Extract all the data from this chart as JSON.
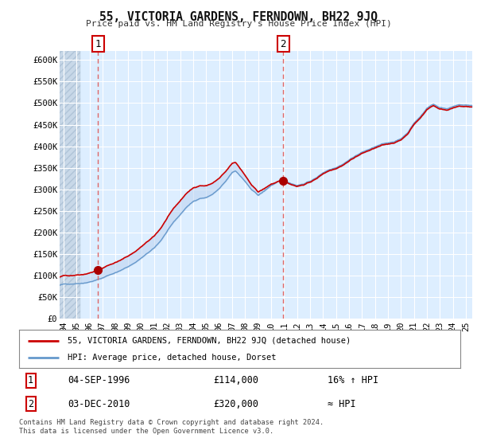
{
  "title": "55, VICTORIA GARDENS, FERNDOWN, BH22 9JQ",
  "subtitle": "Price paid vs. HM Land Registry's House Price Index (HPI)",
  "ylim": [
    0,
    620000
  ],
  "yticks": [
    0,
    50000,
    100000,
    150000,
    200000,
    250000,
    300000,
    350000,
    400000,
    450000,
    500000,
    550000,
    600000
  ],
  "ytick_labels": [
    "£0",
    "£50K",
    "£100K",
    "£150K",
    "£200K",
    "£250K",
    "£300K",
    "£350K",
    "£400K",
    "£450K",
    "£500K",
    "£550K",
    "£600K"
  ],
  "xlim_start": 1993.7,
  "xlim_end": 2025.5,
  "xticks": [
    1994,
    1995,
    1996,
    1997,
    1998,
    1999,
    2000,
    2001,
    2002,
    2003,
    2004,
    2005,
    2006,
    2007,
    2008,
    2009,
    2010,
    2011,
    2012,
    2013,
    2014,
    2015,
    2016,
    2017,
    2018,
    2019,
    2020,
    2021,
    2022,
    2023,
    2024,
    2025
  ],
  "xtick_labels": [
    "94",
    "95",
    "96",
    "97",
    "98",
    "99",
    "00",
    "01",
    "02",
    "03",
    "04",
    "05",
    "06",
    "07",
    "08",
    "09",
    "10",
    "11",
    "12",
    "13",
    "14",
    "15",
    "16",
    "17",
    "18",
    "19",
    "20",
    "21",
    "22",
    "23",
    "24",
    "25"
  ],
  "background_color": "#ffffff",
  "plot_bg_color": "#ddeeff",
  "hatch_bg_color": "#c8d8e8",
  "grid_color": "#ffffff",
  "hpi_line_color": "#6699cc",
  "price_line_color": "#cc0000",
  "marker_color": "#aa0000",
  "dashed_line_color": "#dd6666",
  "sale1_x": 1996.67,
  "sale1_y": 114000,
  "sale2_x": 2010.92,
  "sale2_y": 320000,
  "hatch_end_x": 1995.3,
  "legend_label1": "55, VICTORIA GARDENS, FERNDOWN, BH22 9JQ (detached house)",
  "legend_label2": "HPI: Average price, detached house, Dorset",
  "info1_num": "1",
  "info1_date": "04-SEP-1996",
  "info1_price": "£114,000",
  "info1_hpi": "16% ↑ HPI",
  "info2_num": "2",
  "info2_date": "03-DEC-2010",
  "info2_price": "£320,000",
  "info2_hpi": "≈ HPI",
  "footnote": "Contains HM Land Registry data © Crown copyright and database right 2024.\nThis data is licensed under the Open Government Licence v3.0."
}
